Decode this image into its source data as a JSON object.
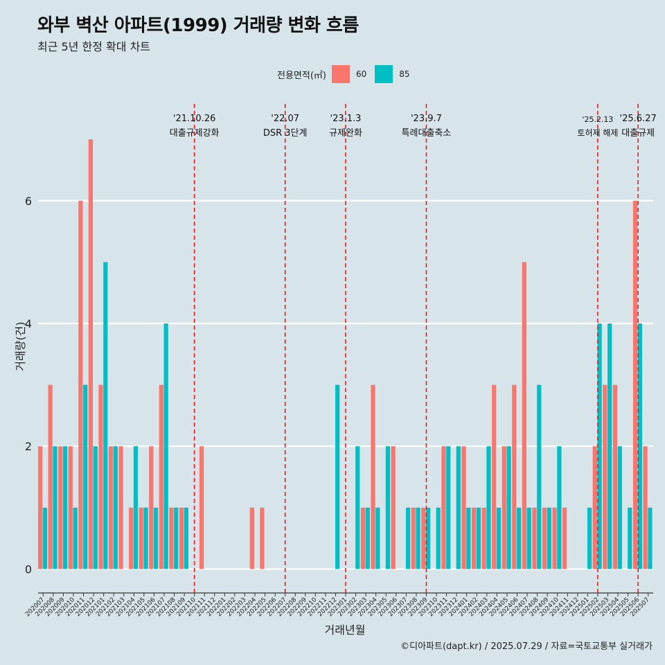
{
  "chart_data": {
    "type": "bar",
    "title": "와부 벽산 아파트(1999) 거래량 변화 흐름",
    "subtitle": "최근 5년 한정 확대 차트",
    "xlabel": "거래년월",
    "ylabel": "거래량(건)",
    "caption": "©디아파트(dapt.kr) / 2025.07.29 / 자료=국토교통부 실거래가",
    "legend_title": "전용면적(㎡)",
    "legend_position": "top",
    "ylim": [
      -0.3,
      7.6
    ],
    "yticks": [
      0,
      2,
      4,
      6
    ],
    "colors": {
      "60": "#f8766d",
      "85": "#00bfc4"
    },
    "categories": [
      "202007",
      "202008",
      "202009",
      "202010",
      "202011",
      "202012",
      "202101",
      "202102",
      "202103",
      "202104",
      "202105",
      "202106",
      "202107",
      "202108",
      "202109",
      "202110",
      "202111",
      "202112",
      "202201",
      "202202",
      "202203",
      "202204",
      "202205",
      "202206",
      "202207",
      "202208",
      "202209",
      "202210",
      "202211",
      "202212",
      "202301",
      "202302",
      "202303",
      "202304",
      "202305",
      "202306",
      "202307",
      "202308",
      "202309",
      "202310",
      "202311",
      "202312",
      "202401",
      "202402",
      "202403",
      "202404",
      "202405",
      "202406",
      "202407",
      "202408",
      "202409",
      "202410",
      "202411",
      "202412",
      "202501",
      "202502",
      "202503",
      "202504",
      "202505",
      "202506",
      "202507"
    ],
    "series": [
      {
        "name": "60",
        "values": [
          2,
          3,
          2,
          2,
          6,
          7,
          3,
          2,
          2,
          1,
          1,
          2,
          3,
          1,
          1,
          0,
          2,
          0,
          0,
          0,
          0,
          1,
          1,
          0,
          0,
          0,
          0,
          0,
          0,
          0,
          0,
          0,
          1,
          3,
          0,
          2,
          0,
          1,
          1,
          0,
          2,
          0,
          2,
          1,
          1,
          3,
          2,
          3,
          5,
          1,
          1,
          1,
          1,
          0,
          0,
          2,
          3,
          3,
          0,
          6,
          2
        ]
      },
      {
        "name": "85",
        "values": [
          1,
          2,
          2,
          1,
          3,
          2,
          5,
          2,
          0,
          2,
          1,
          1,
          4,
          1,
          1,
          0,
          0,
          0,
          0,
          0,
          0,
          0,
          0,
          0,
          0,
          0,
          0,
          0,
          0,
          3,
          0,
          2,
          1,
          1,
          2,
          0,
          1,
          1,
          1,
          1,
          2,
          2,
          1,
          1,
          2,
          1,
          2,
          1,
          1,
          3,
          1,
          2,
          0,
          0,
          1,
          4,
          4,
          2,
          1,
          4,
          1
        ]
      }
    ],
    "annotations": [
      {
        "category": "202110",
        "date": "'21.10.26",
        "label": "대출규제강화"
      },
      {
        "category": "202207",
        "date": "'22.07",
        "label": "DSR 3단계"
      },
      {
        "category": "202301",
        "date": "'23.1.3",
        "label": "규제완화"
      },
      {
        "category": "202309",
        "date": "'23.9.7",
        "label": "특례대출축소"
      },
      {
        "category": "202502",
        "date": "'25.2.13",
        "label": "토허제 해제"
      },
      {
        "category": "202506",
        "date": "'25.6.27",
        "label": "대출규제"
      }
    ]
  }
}
